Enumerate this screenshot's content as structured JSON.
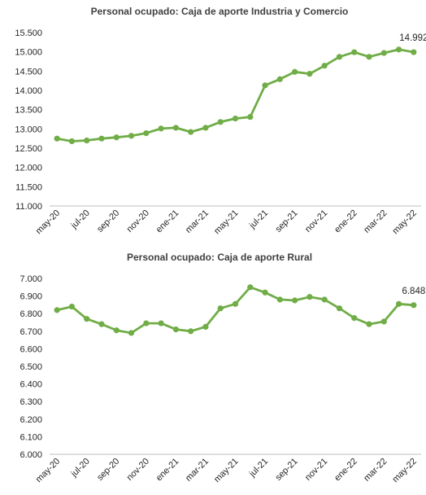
{
  "chart_data": [
    {
      "type": "line",
      "title": "Personal ocupado: Caja de aporte Industria y Comercio",
      "xlabel": "",
      "ylabel": "",
      "ylim": [
        11000,
        15500
      ],
      "yticks": [
        "11.000",
        "11.500",
        "12.000",
        "12.500",
        "13.000",
        "13.500",
        "14.000",
        "14.500",
        "15.000",
        "15.500"
      ],
      "x": [
        "may-20",
        "jun-20",
        "jul-20",
        "ago-20",
        "sep-20",
        "oct-20",
        "nov-20",
        "dic-20",
        "ene-21",
        "feb-21",
        "mar-21",
        "abr-21",
        "may-21",
        "jun-21",
        "jul-21",
        "ago-21",
        "sep-21",
        "oct-21",
        "nov-21",
        "dic-21",
        "ene-22",
        "feb-22",
        "mar-22",
        "abr-22",
        "may-22"
      ],
      "xtick_labels": [
        "may-20",
        "jul-20",
        "sep-20",
        "nov-20",
        "ene-21",
        "mar-21",
        "may-21",
        "jul-21",
        "sep-21",
        "nov-21",
        "ene-22",
        "mar-22",
        "may-22"
      ],
      "series": [
        {
          "values": [
            12750,
            12680,
            12700,
            12750,
            12780,
            12820,
            12890,
            13010,
            13030,
            12920,
            13030,
            13180,
            13270,
            13310,
            14130,
            14290,
            14480,
            14430,
            14640,
            14870,
            14990,
            14870,
            14970,
            15060,
            14992
          ]
        }
      ],
      "last_label": "14.992",
      "color": "#70ad47",
      "grid": false
    },
    {
      "type": "line",
      "title": "Personal ocupado: Caja de aporte Rural",
      "xlabel": "",
      "ylabel": "",
      "ylim": [
        6000,
        7000
      ],
      "yticks": [
        "6.000",
        "6.100",
        "6.200",
        "6.300",
        "6.400",
        "6.500",
        "6.600",
        "6.700",
        "6.800",
        "6.900",
        "7.000"
      ],
      "x": [
        "may-20",
        "jun-20",
        "jul-20",
        "ago-20",
        "sep-20",
        "oct-20",
        "nov-20",
        "dic-20",
        "ene-21",
        "feb-21",
        "mar-21",
        "abr-21",
        "may-21",
        "jun-21",
        "jul-21",
        "ago-21",
        "sep-21",
        "oct-21",
        "nov-21",
        "dic-21",
        "ene-22",
        "feb-22",
        "mar-22",
        "abr-22",
        "may-22"
      ],
      "xtick_labels": [
        "may-20",
        "jul-20",
        "sep-20",
        "nov-20",
        "ene-21",
        "mar-21",
        "may-21",
        "jul-21",
        "sep-21",
        "nov-21",
        "ene-22",
        "mar-22",
        "may-22"
      ],
      "series": [
        {
          "values": [
            6820,
            6840,
            6770,
            6740,
            6705,
            6690,
            6745,
            6745,
            6710,
            6700,
            6725,
            6830,
            6855,
            6950,
            6920,
            6880,
            6875,
            6895,
            6880,
            6830,
            6775,
            6740,
            6755,
            6855,
            6848
          ]
        }
      ],
      "last_label": "6.848",
      "color": "#70ad47",
      "grid": false
    }
  ]
}
